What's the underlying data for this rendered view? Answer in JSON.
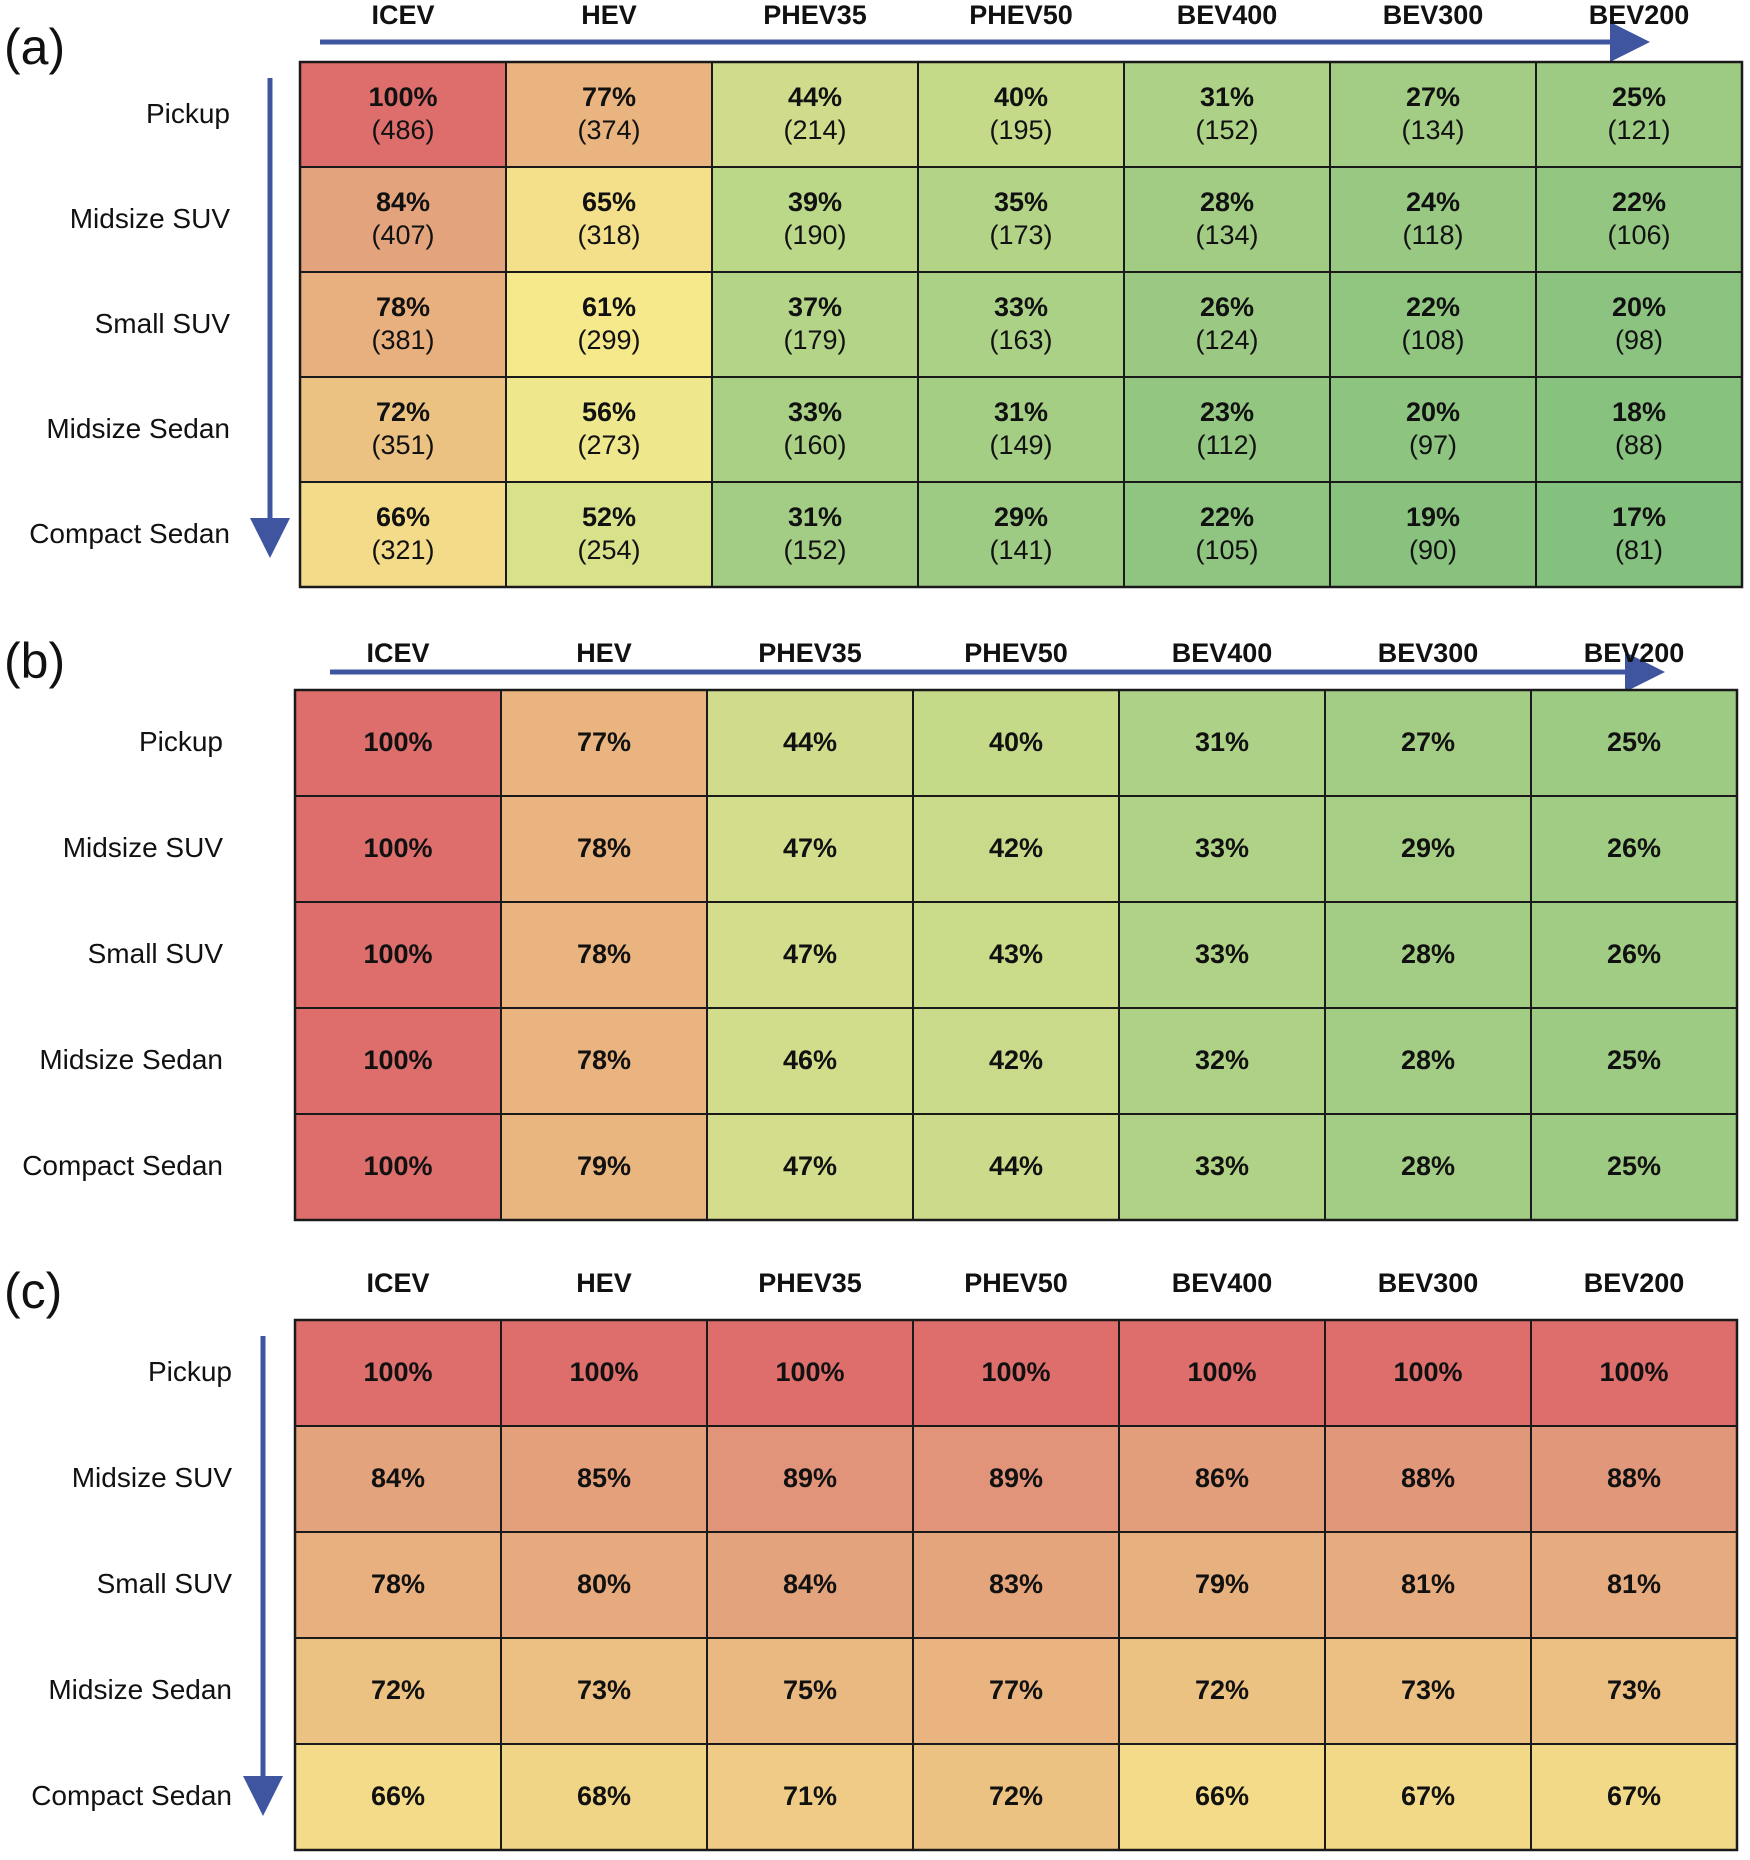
{
  "chart_data": [
    {
      "type": "heatmap",
      "panel_label": "(a)",
      "columns": [
        "ICEV",
        "HEV",
        "PHEV35",
        "PHEV50",
        "BEV400",
        "BEV300",
        "BEV200"
      ],
      "rows": [
        "Pickup",
        "Midsize SUV",
        "Small SUV",
        "Midsize Sedan",
        "Compact Sedan"
      ],
      "values": [
        [
          "100%",
          "77%",
          "44%",
          "40%",
          "31%",
          "27%",
          "25%"
        ],
        [
          "84%",
          "65%",
          "39%",
          "35%",
          "28%",
          "24%",
          "22%"
        ],
        [
          "78%",
          "61%",
          "37%",
          "33%",
          "26%",
          "22%",
          "20%"
        ],
        [
          "72%",
          "56%",
          "33%",
          "31%",
          "23%",
          "20%",
          "18%"
        ],
        [
          "66%",
          "52%",
          "31%",
          "29%",
          "22%",
          "19%",
          "17%"
        ]
      ],
      "counts": [
        [
          "(486)",
          "(374)",
          "(214)",
          "(195)",
          "(152)",
          "(134)",
          "(121)"
        ],
        [
          "(407)",
          "(318)",
          "(190)",
          "(173)",
          "(134)",
          "(118)",
          "(106)"
        ],
        [
          "(381)",
          "(299)",
          "(179)",
          "(163)",
          "(124)",
          "(108)",
          "(98)"
        ],
        [
          "(351)",
          "(273)",
          "(160)",
          "(149)",
          "(112)",
          "(97)",
          "(88)"
        ],
        [
          "(321)",
          "(254)",
          "(152)",
          "(141)",
          "(105)",
          "(90)",
          "(81)"
        ]
      ],
      "fills": [
        [
          "#dd6e6b",
          "#e9b47f",
          "#d0dc8c",
          "#c5da89",
          "#add186",
          "#a3cd84",
          "#9ecb83"
        ],
        [
          "#e3a37c",
          "#f4e08a",
          "#bbd788",
          "#b3d487",
          "#a2cc84",
          "#98c882",
          "#93c681"
        ],
        [
          "#e8b07f",
          "#f5e98c",
          "#b4d487",
          "#abd186",
          "#9bc983",
          "#91c681",
          "#8cc380"
        ],
        [
          "#ecc283",
          "#eee78c",
          "#a9d085",
          "#a3ce84",
          "#93c681",
          "#8cc480",
          "#88c27f"
        ],
        [
          "#f3db89",
          "#d9e18b",
          "#a3cd84",
          "#9dcb83",
          "#8fc581",
          "#89c27f",
          "#85c17e"
        ]
      ],
      "row_arrow": true,
      "column_arrow": true
    },
    {
      "type": "heatmap",
      "panel_label": "(b)",
      "columns": [
        "ICEV",
        "HEV",
        "PHEV35",
        "PHEV50",
        "BEV400",
        "BEV300",
        "BEV200"
      ],
      "rows": [
        "Pickup",
        "Midsize SUV",
        "Small SUV",
        "Midsize Sedan",
        "Compact Sedan"
      ],
      "values": [
        [
          "100%",
          "77%",
          "44%",
          "40%",
          "31%",
          "27%",
          "25%"
        ],
        [
          "100%",
          "78%",
          "47%",
          "42%",
          "33%",
          "29%",
          "26%"
        ],
        [
          "100%",
          "78%",
          "47%",
          "43%",
          "33%",
          "28%",
          "26%"
        ],
        [
          "100%",
          "78%",
          "46%",
          "42%",
          "32%",
          "28%",
          "25%"
        ],
        [
          "100%",
          "79%",
          "47%",
          "44%",
          "33%",
          "28%",
          "25%"
        ]
      ],
      "fills": [
        [
          "#dd6e6b",
          "#e9b47f",
          "#d0dc8c",
          "#c5da89",
          "#add186",
          "#a3cd84",
          "#9ecb83"
        ],
        [
          "#dd6e6b",
          "#e9b480",
          "#d3dd8c",
          "#c9da8a",
          "#b0d286",
          "#a6ce85",
          "#a0cc84"
        ],
        [
          "#dd6e6b",
          "#e9b480",
          "#d3dd8c",
          "#cadb8a",
          "#b0d286",
          "#a3cd84",
          "#a0cc84"
        ],
        [
          "#dd6e6b",
          "#e9b480",
          "#d2dd8c",
          "#c9da8a",
          "#aed186",
          "#a3cd84",
          "#9ecb83"
        ],
        [
          "#dd6e6b",
          "#eab680",
          "#d3dd8c",
          "#ccdb8b",
          "#b0d286",
          "#a3cd84",
          "#9ecb83"
        ]
      ],
      "row_arrow": false,
      "column_arrow": true
    },
    {
      "type": "heatmap",
      "panel_label": "(c)",
      "columns": [
        "ICEV",
        "HEV",
        "PHEV35",
        "PHEV50",
        "BEV400",
        "BEV300",
        "BEV200"
      ],
      "rows": [
        "Pickup",
        "Midsize SUV",
        "Small SUV",
        "Midsize Sedan",
        "Compact Sedan"
      ],
      "values": [
        [
          "100%",
          "100%",
          "100%",
          "100%",
          "100%",
          "100%",
          "100%"
        ],
        [
          "84%",
          "85%",
          "89%",
          "89%",
          "86%",
          "88%",
          "88%"
        ],
        [
          "78%",
          "80%",
          "84%",
          "83%",
          "79%",
          "81%",
          "81%"
        ],
        [
          "72%",
          "73%",
          "75%",
          "77%",
          "72%",
          "73%",
          "73%"
        ],
        [
          "66%",
          "68%",
          "71%",
          "72%",
          "66%",
          "67%",
          "67%"
        ]
      ],
      "fills": [
        [
          "#dd6e6b",
          "#dd6e6b",
          "#dd6e6b",
          "#dd6e6b",
          "#dd6e6b",
          "#dd6e6b",
          "#dd6e6b"
        ],
        [
          "#e3a37c",
          "#e3a07b",
          "#e1947a",
          "#e1947a",
          "#e29d7b",
          "#e1977a",
          "#e1977a"
        ],
        [
          "#e8b07f",
          "#e6aa7e",
          "#e3a37c",
          "#e4a47c",
          "#e7b07f",
          "#e6ab7e",
          "#e6ab7e"
        ],
        [
          "#ecc283",
          "#ecc083",
          "#eab981",
          "#e9b47f",
          "#ecc283",
          "#ecc083",
          "#ecc083"
        ],
        [
          "#f3db89",
          "#f1d587",
          "#efcb85",
          "#ecc283",
          "#f3db89",
          "#f2d988",
          "#f2d988"
        ]
      ],
      "row_arrow": true,
      "column_arrow": false
    }
  ],
  "colors": {
    "arrow": "#3f55a0",
    "grid_line": "#1a1a1a"
  }
}
